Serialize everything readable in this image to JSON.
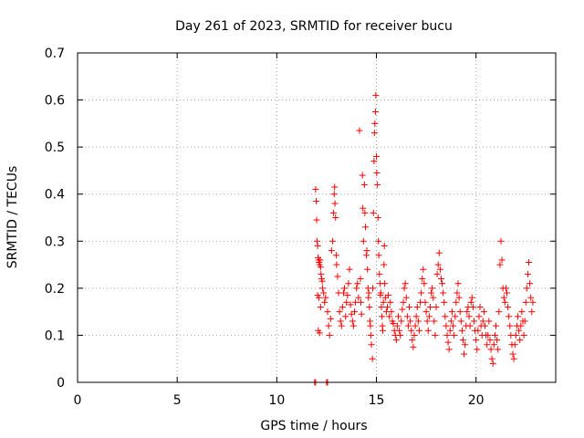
{
  "chart_data": {
    "type": "scatter",
    "title": "Day 261 of 2023, SRMTID for receiver bucu",
    "xlabel": "GPS time / hours",
    "ylabel": "SRMTID / TECUs",
    "xlim": [
      0,
      24
    ],
    "ylim": [
      0,
      0.7
    ],
    "xticks": [
      0,
      5,
      10,
      15,
      20
    ],
    "xtick_labels": [
      "0",
      "5",
      "10",
      "15",
      "20"
    ],
    "yticks": [
      0,
      0.1,
      0.2,
      0.3,
      0.4,
      0.5,
      0.6,
      0.7
    ],
    "ytick_labels": [
      "0",
      "0.1",
      "0.2",
      "0.3",
      "0.4",
      "0.5",
      "0.6",
      "0.7"
    ],
    "grid": true,
    "marker": "plus",
    "color": "#ff0000",
    "series": [
      {
        "name": "SRMTID",
        "points": [
          [
            11.9,
            0.0
          ],
          [
            11.95,
            0.0
          ],
          [
            12.5,
            0.0
          ],
          [
            12.55,
            0.0
          ],
          [
            11.95,
            0.41
          ],
          [
            11.98,
            0.385
          ],
          [
            12.0,
            0.345
          ],
          [
            12.02,
            0.3
          ],
          [
            12.05,
            0.29
          ],
          [
            12.07,
            0.265
          ],
          [
            12.1,
            0.26
          ],
          [
            12.12,
            0.255
          ],
          [
            12.15,
            0.25
          ],
          [
            12.18,
            0.26
          ],
          [
            12.2,
            0.245
          ],
          [
            12.22,
            0.23
          ],
          [
            12.25,
            0.22
          ],
          [
            12.28,
            0.215
          ],
          [
            12.3,
            0.2
          ],
          [
            12.05,
            0.185
          ],
          [
            12.12,
            0.18
          ],
          [
            12.2,
            0.16
          ],
          [
            12.08,
            0.11
          ],
          [
            12.15,
            0.105
          ],
          [
            12.35,
            0.19
          ],
          [
            12.4,
            0.17
          ],
          [
            12.45,
            0.18
          ],
          [
            12.55,
            0.15
          ],
          [
            12.6,
            0.12
          ],
          [
            12.65,
            0.1
          ],
          [
            12.7,
            0.135
          ],
          [
            12.75,
            0.28
          ],
          [
            12.8,
            0.3
          ],
          [
            12.85,
            0.36
          ],
          [
            12.88,
            0.4
          ],
          [
            12.9,
            0.415
          ],
          [
            12.92,
            0.38
          ],
          [
            12.95,
            0.35
          ],
          [
            12.98,
            0.27
          ],
          [
            13.0,
            0.25
          ],
          [
            13.05,
            0.225
          ],
          [
            13.1,
            0.19
          ],
          [
            13.15,
            0.15
          ],
          [
            13.2,
            0.13
          ],
          [
            13.25,
            0.12
          ],
          [
            13.3,
            0.16
          ],
          [
            13.35,
            0.19
          ],
          [
            13.4,
            0.2
          ],
          [
            13.45,
            0.14
          ],
          [
            13.5,
            0.17
          ],
          [
            13.55,
            0.185
          ],
          [
            13.6,
            0.21
          ],
          [
            13.65,
            0.24
          ],
          [
            13.7,
            0.165
          ],
          [
            13.75,
            0.145
          ],
          [
            13.8,
            0.13
          ],
          [
            13.85,
            0.12
          ],
          [
            13.9,
            0.15
          ],
          [
            13.95,
            0.17
          ],
          [
            14.0,
            0.2
          ],
          [
            14.05,
            0.21
          ],
          [
            14.1,
            0.18
          ],
          [
            14.15,
            0.535
          ],
          [
            14.2,
            0.22
          ],
          [
            14.22,
            0.17
          ],
          [
            14.25,
            0.145
          ],
          [
            14.3,
            0.44
          ],
          [
            14.32,
            0.37
          ],
          [
            14.35,
            0.3
          ],
          [
            14.4,
            0.42
          ],
          [
            14.42,
            0.36
          ],
          [
            14.45,
            0.33
          ],
          [
            14.5,
            0.27
          ],
          [
            14.52,
            0.28
          ],
          [
            14.55,
            0.24
          ],
          [
            14.58,
            0.2
          ],
          [
            14.6,
            0.18
          ],
          [
            14.62,
            0.19
          ],
          [
            14.65,
            0.16
          ],
          [
            14.68,
            0.13
          ],
          [
            14.7,
            0.12
          ],
          [
            14.72,
            0.1
          ],
          [
            14.75,
            0.08
          ],
          [
            14.8,
            0.05
          ],
          [
            14.82,
            0.2
          ],
          [
            14.85,
            0.36
          ],
          [
            14.88,
            0.47
          ],
          [
            14.9,
            0.53
          ],
          [
            14.92,
            0.55
          ],
          [
            14.95,
            0.575
          ],
          [
            14.97,
            0.61
          ],
          [
            15.0,
            0.48
          ],
          [
            15.02,
            0.445
          ],
          [
            15.05,
            0.42
          ],
          [
            15.08,
            0.35
          ],
          [
            15.1,
            0.3
          ],
          [
            15.12,
            0.27
          ],
          [
            15.15,
            0.23
          ],
          [
            15.18,
            0.21
          ],
          [
            15.2,
            0.185
          ],
          [
            15.22,
            0.19
          ],
          [
            15.25,
            0.16
          ],
          [
            15.28,
            0.14
          ],
          [
            15.3,
            0.12
          ],
          [
            15.32,
            0.11
          ],
          [
            15.35,
            0.17
          ],
          [
            15.38,
            0.25
          ],
          [
            15.4,
            0.29
          ],
          [
            15.42,
            0.21
          ],
          [
            15.45,
            0.18
          ],
          [
            15.5,
            0.15
          ],
          [
            15.55,
            0.16
          ],
          [
            15.6,
            0.185
          ],
          [
            15.65,
            0.14
          ],
          [
            15.7,
            0.17
          ],
          [
            15.75,
            0.15
          ],
          [
            15.8,
            0.13
          ],
          [
            15.85,
            0.125
          ],
          [
            15.9,
            0.11
          ],
          [
            15.95,
            0.1
          ],
          [
            16.0,
            0.09
          ],
          [
            16.05,
            0.12
          ],
          [
            16.1,
            0.14
          ],
          [
            16.15,
            0.11
          ],
          [
            16.2,
            0.1
          ],
          [
            16.25,
            0.13
          ],
          [
            16.3,
            0.155
          ],
          [
            16.35,
            0.17
          ],
          [
            16.4,
            0.2
          ],
          [
            16.45,
            0.21
          ],
          [
            16.5,
            0.18
          ],
          [
            16.55,
            0.14
          ],
          [
            16.6,
            0.12
          ],
          [
            16.65,
            0.16
          ],
          [
            16.7,
            0.13
          ],
          [
            16.75,
            0.11
          ],
          [
            16.8,
            0.09
          ],
          [
            16.85,
            0.075
          ],
          [
            16.9,
            0.1
          ],
          [
            16.95,
            0.12
          ],
          [
            17.0,
            0.14
          ],
          [
            17.05,
            0.16
          ],
          [
            17.1,
            0.13
          ],
          [
            17.15,
            0.11
          ],
          [
            17.2,
            0.17
          ],
          [
            17.25,
            0.19
          ],
          [
            17.3,
            0.22
          ],
          [
            17.35,
            0.24
          ],
          [
            17.4,
            0.21
          ],
          [
            17.45,
            0.17
          ],
          [
            17.5,
            0.15
          ],
          [
            17.55,
            0.13
          ],
          [
            17.6,
            0.11
          ],
          [
            17.65,
            0.14
          ],
          [
            17.7,
            0.16
          ],
          [
            17.75,
            0.19
          ],
          [
            17.8,
            0.2
          ],
          [
            17.85,
            0.18
          ],
          [
            17.9,
            0.13
          ],
          [
            17.95,
            0.1
          ],
          [
            18.0,
            0.16
          ],
          [
            18.05,
            0.23
          ],
          [
            18.1,
            0.25
          ],
          [
            18.15,
            0.275
          ],
          [
            18.2,
            0.24
          ],
          [
            18.25,
            0.22
          ],
          [
            18.3,
            0.21
          ],
          [
            18.35,
            0.19
          ],
          [
            18.4,
            0.17
          ],
          [
            18.45,
            0.14
          ],
          [
            18.5,
            0.12
          ],
          [
            18.55,
            0.1
          ],
          [
            18.6,
            0.085
          ],
          [
            18.65,
            0.07
          ],
          [
            18.7,
            0.11
          ],
          [
            18.75,
            0.13
          ],
          [
            18.8,
            0.15
          ],
          [
            18.85,
            0.12
          ],
          [
            18.9,
            0.1
          ],
          [
            18.95,
            0.14
          ],
          [
            19.0,
            0.17
          ],
          [
            19.05,
            0.19
          ],
          [
            19.1,
            0.21
          ],
          [
            19.15,
            0.18
          ],
          [
            19.2,
            0.15
          ],
          [
            19.25,
            0.13
          ],
          [
            19.3,
            0.11
          ],
          [
            19.35,
            0.09
          ],
          [
            19.4,
            0.06
          ],
          [
            19.45,
            0.08
          ],
          [
            19.5,
            0.12
          ],
          [
            19.55,
            0.15
          ],
          [
            19.6,
            0.16
          ],
          [
            19.65,
            0.14
          ],
          [
            19.7,
            0.12
          ],
          [
            19.75,
            0.17
          ],
          [
            19.8,
            0.18
          ],
          [
            19.85,
            0.16
          ],
          [
            19.9,
            0.13
          ],
          [
            19.95,
            0.11
          ],
          [
            20.0,
            0.09
          ],
          [
            20.05,
            0.07
          ],
          [
            20.1,
            0.11
          ],
          [
            20.15,
            0.14
          ],
          [
            20.2,
            0.16
          ],
          [
            20.25,
            0.12
          ],
          [
            20.3,
            0.1
          ],
          [
            20.35,
            0.13
          ],
          [
            20.4,
            0.15
          ],
          [
            20.45,
            0.12
          ],
          [
            20.5,
            0.1
          ],
          [
            20.55,
            0.08
          ],
          [
            20.6,
            0.1
          ],
          [
            20.65,
            0.13
          ],
          [
            20.7,
            0.09
          ],
          [
            20.75,
            0.07
          ],
          [
            20.8,
            0.05
          ],
          [
            20.85,
            0.04
          ],
          [
            20.9,
            0.08
          ],
          [
            20.95,
            0.1
          ],
          [
            21.0,
            0.12
          ],
          [
            21.05,
            0.09
          ],
          [
            21.1,
            0.07
          ],
          [
            21.15,
            0.15
          ],
          [
            21.2,
            0.25
          ],
          [
            21.25,
            0.3
          ],
          [
            21.3,
            0.26
          ],
          [
            21.35,
            0.2
          ],
          [
            21.4,
            0.18
          ],
          [
            21.45,
            0.17
          ],
          [
            21.5,
            0.2
          ],
          [
            21.55,
            0.19
          ],
          [
            21.6,
            0.16
          ],
          [
            21.65,
            0.14
          ],
          [
            21.7,
            0.12
          ],
          [
            21.75,
            0.1
          ],
          [
            21.8,
            0.08
          ],
          [
            21.85,
            0.06
          ],
          [
            21.9,
            0.05
          ],
          [
            21.95,
            0.08
          ],
          [
            22.0,
            0.1
          ],
          [
            22.05,
            0.12
          ],
          [
            22.1,
            0.14
          ],
          [
            22.15,
            0.11
          ],
          [
            22.2,
            0.09
          ],
          [
            22.25,
            0.12
          ],
          [
            22.3,
            0.15
          ],
          [
            22.35,
            0.13
          ],
          [
            22.4,
            0.1
          ],
          [
            22.45,
            0.13
          ],
          [
            22.5,
            0.17
          ],
          [
            22.55,
            0.2
          ],
          [
            22.6,
            0.23
          ],
          [
            22.65,
            0.255
          ],
          [
            22.7,
            0.21
          ],
          [
            22.75,
            0.18
          ],
          [
            22.8,
            0.15
          ],
          [
            22.85,
            0.17
          ]
        ]
      }
    ]
  }
}
